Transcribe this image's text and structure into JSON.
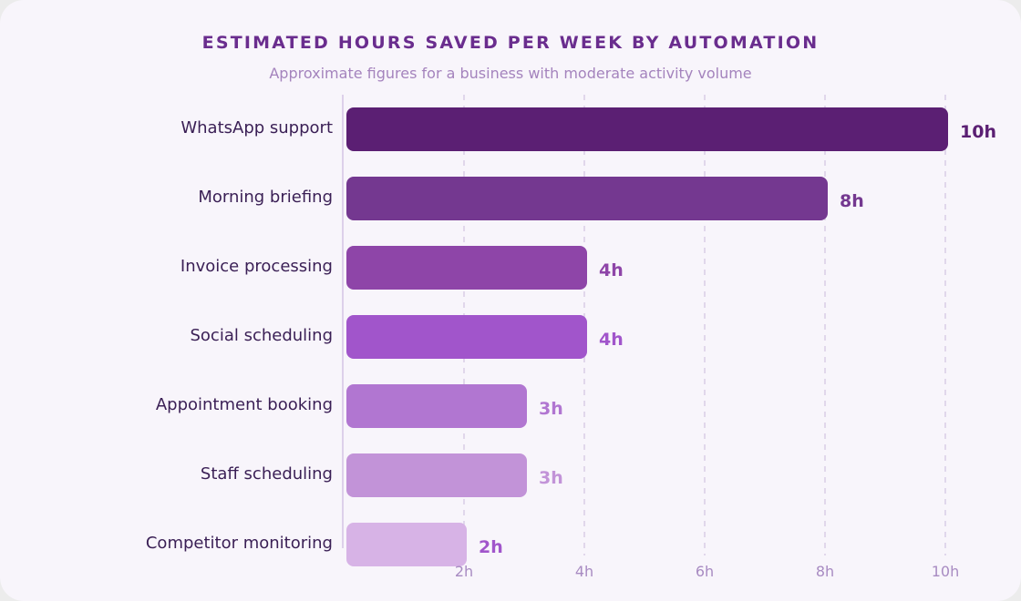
{
  "chart_data": {
    "type": "bar",
    "orientation": "horizontal",
    "title": "ESTIMATED HOURS SAVED PER WEEK BY AUTOMATION",
    "subtitle": "Approximate figures for a business with moderate activity volume",
    "categories": [
      "WhatsApp support",
      "Morning briefing",
      "Invoice processing",
      "Social scheduling",
      "Appointment booking",
      "Staff scheduling",
      "Competitor monitoring"
    ],
    "values": [
      10,
      8,
      4,
      4,
      3,
      3,
      2
    ],
    "value_labels": [
      "10h",
      "8h",
      "4h",
      "4h",
      "3h",
      "3h",
      "2h"
    ],
    "bar_colors": [
      "#5b1f73",
      "#743890",
      "#8e45a8",
      "#a155cb",
      "#b176d1",
      "#c293d8",
      "#d7b3e6"
    ],
    "value_label_colors": [
      "#5b1f73",
      "#743890",
      "#8e45a8",
      "#a155cb",
      "#b176d1",
      "#c293d8",
      "#a155cb"
    ],
    "x_ticks": [
      2,
      4,
      6,
      8,
      10
    ],
    "x_tick_labels": [
      "2h",
      "4h",
      "6h",
      "8h",
      "10h"
    ],
    "xlim": [
      0,
      10
    ],
    "grid": "vertical-dashed",
    "legend": "none"
  }
}
